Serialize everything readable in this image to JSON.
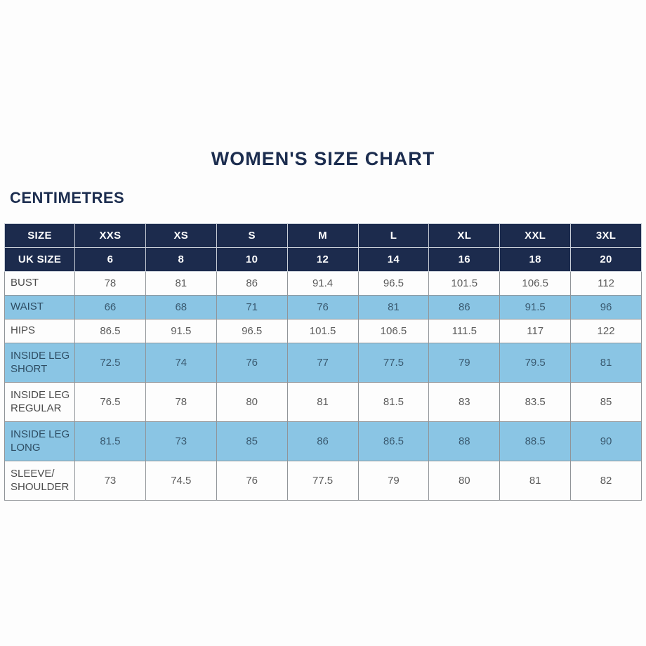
{
  "page": {
    "title": "WOMEN'S SIZE CHART",
    "unit_label": "CENTIMETRES"
  },
  "colors": {
    "header_navy": "#1c2b4d",
    "title_navy": "#1c2d4f",
    "highlight_blue": "#8ac5e4",
    "row_white": "#fdfdfd",
    "body_text_gray": "#5c5c5c",
    "blue_row_text": "#3a5a70",
    "grid_line": "#909498"
  },
  "chart_data": {
    "type": "table",
    "title": "WOMEN'S SIZE CHART",
    "unit": "CENTIMETRES",
    "header": {
      "size_row": [
        "SIZE",
        "XXS",
        "XS",
        "S",
        "M",
        "L",
        "XL",
        "XXL",
        "3XL"
      ],
      "uk_size_row": [
        "UK SIZE",
        "6",
        "8",
        "10",
        "12",
        "14",
        "16",
        "18",
        "20"
      ]
    },
    "rows": [
      {
        "label": "BUST",
        "label_lines": [
          "BUST"
        ],
        "highlight": false,
        "values": [
          "78",
          "81",
          "86",
          "91.4",
          "96.5",
          "101.5",
          "106.5",
          "112"
        ]
      },
      {
        "label": "WAIST",
        "label_lines": [
          "WAIST"
        ],
        "highlight": true,
        "values": [
          "66",
          "68",
          "71",
          "76",
          "81",
          "86",
          "91.5",
          "96"
        ]
      },
      {
        "label": "HIPS",
        "label_lines": [
          "HIPS"
        ],
        "highlight": false,
        "values": [
          "86.5",
          "91.5",
          "96.5",
          "101.5",
          "106.5",
          "111.5",
          "117",
          "122"
        ]
      },
      {
        "label": "INSIDE LEG SHORT",
        "label_lines": [
          "INSIDE LEG",
          "SHORT"
        ],
        "highlight": true,
        "values": [
          "72.5",
          "74",
          "76",
          "77",
          "77.5",
          "79",
          "79.5",
          "81"
        ]
      },
      {
        "label": "INSIDE LEG REGULAR",
        "label_lines": [
          "INSIDE LEG",
          "REGULAR"
        ],
        "highlight": false,
        "values": [
          "76.5",
          "78",
          "80",
          "81",
          "81.5",
          "83",
          "83.5",
          "85"
        ]
      },
      {
        "label": "INSIDE LEG LONG",
        "label_lines": [
          "INSIDE LEG",
          "LONG"
        ],
        "highlight": true,
        "values": [
          "81.5",
          "73",
          "85",
          "86",
          "86.5",
          "88",
          "88.5",
          "90"
        ]
      },
      {
        "label": "SLEEVE/SHOULDER",
        "label_lines": [
          "SLEEVE/",
          "SHOULDER"
        ],
        "highlight": false,
        "values": [
          "73",
          "74.5",
          "76",
          "77.5",
          "79",
          "80",
          "81",
          "82"
        ]
      }
    ]
  }
}
